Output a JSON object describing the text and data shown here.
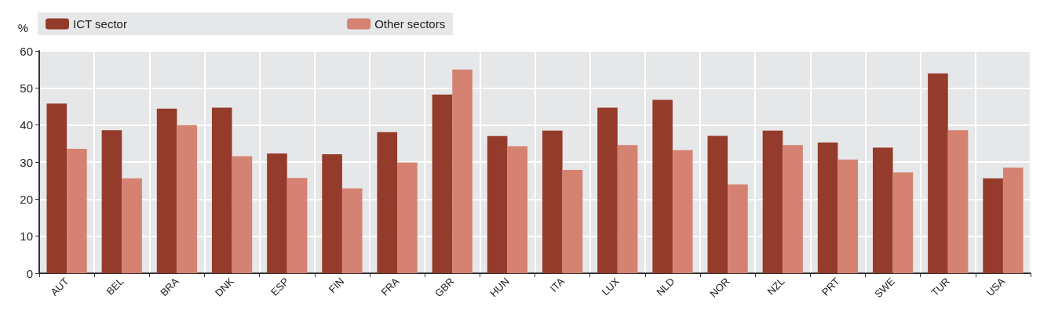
{
  "chart_data": {
    "type": "bar",
    "ylabel": "%",
    "categories": [
      "AUT",
      "BEL",
      "BRA",
      "DNK",
      "ESP",
      "FIN",
      "FRA",
      "GBR",
      "HUN",
      "ITA",
      "LUX",
      "NLD",
      "NOR",
      "NZL",
      "PRT",
      "SWE",
      "TUR",
      "USA"
    ],
    "series": [
      {
        "name": "ICT sector",
        "color": "#953b2b",
        "values": [
          45.8,
          38.6,
          44.4,
          44.7,
          32.3,
          32.1,
          38.1,
          48.2,
          37.0,
          38.5,
          44.7,
          46.8,
          37.1,
          38.5,
          35.3,
          33.9,
          53.9,
          25.6
        ]
      },
      {
        "name": "Other sectors",
        "color": "#d58272",
        "values": [
          33.6,
          25.6,
          40.0,
          31.6,
          25.7,
          22.9,
          29.9,
          55.0,
          34.3,
          27.9,
          34.6,
          33.2,
          24.0,
          34.6,
          30.7,
          27.2,
          38.6,
          28.5
        ]
      }
    ],
    "ylim": [
      0,
      60
    ],
    "yticks": [
      0,
      10,
      20,
      30,
      40,
      50,
      60
    ],
    "grid": true,
    "legend": "top"
  }
}
